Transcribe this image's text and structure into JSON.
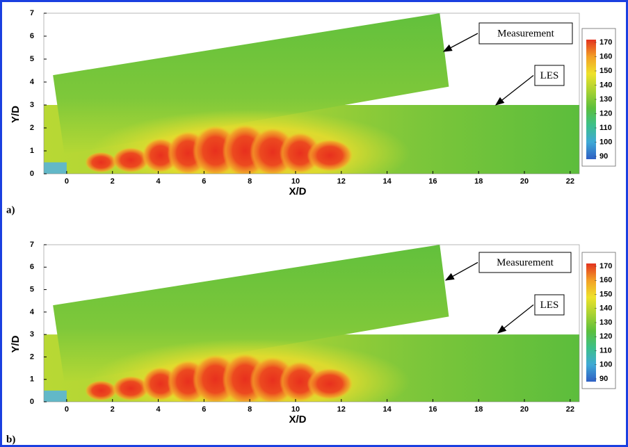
{
  "chart_data": [
    {
      "type": "contour",
      "panel_label": "a)",
      "xlabel": "X/D",
      "ylabel": "Y/D",
      "xlim": [
        -1,
        22.4
      ],
      "ylim": [
        0,
        7
      ],
      "xticks": [
        0,
        2,
        4,
        6,
        8,
        10,
        12,
        14,
        16,
        18,
        20,
        22
      ],
      "yticks": [
        0,
        1,
        2,
        3,
        4,
        5,
        6,
        7
      ],
      "colorbar": {
        "lim": [
          90,
          170
        ],
        "ticks": [
          90,
          100,
          110,
          120,
          130,
          140,
          150,
          160,
          170
        ],
        "colors": [
          "#2f5fc4",
          "#3fa9d6",
          "#3cc08a",
          "#5cbf3c",
          "#a8d232",
          "#eee22a",
          "#f3a026",
          "#e3331f"
        ]
      },
      "annotations": [
        "Measurement",
        "LES"
      ]
    },
    {
      "type": "contour",
      "panel_label": "b)",
      "xlabel": "X/D",
      "ylabel": "Y/D",
      "xlim": [
        -1,
        22.4
      ],
      "ylim": [
        0,
        7
      ],
      "xticks": [
        0,
        2,
        4,
        6,
        8,
        10,
        12,
        14,
        16,
        18,
        20,
        22
      ],
      "yticks": [
        0,
        1,
        2,
        3,
        4,
        5,
        6,
        7
      ],
      "colorbar": {
        "lim": [
          90,
          170
        ],
        "ticks": [
          90,
          100,
          110,
          120,
          130,
          140,
          150,
          160,
          170
        ],
        "colors": [
          "#2f5fc4",
          "#3fa9d6",
          "#3cc08a",
          "#5cbf3c",
          "#a8d232",
          "#eee22a",
          "#f3a026",
          "#e3331f"
        ]
      },
      "annotations": [
        "Measurement",
        "LES"
      ]
    }
  ]
}
